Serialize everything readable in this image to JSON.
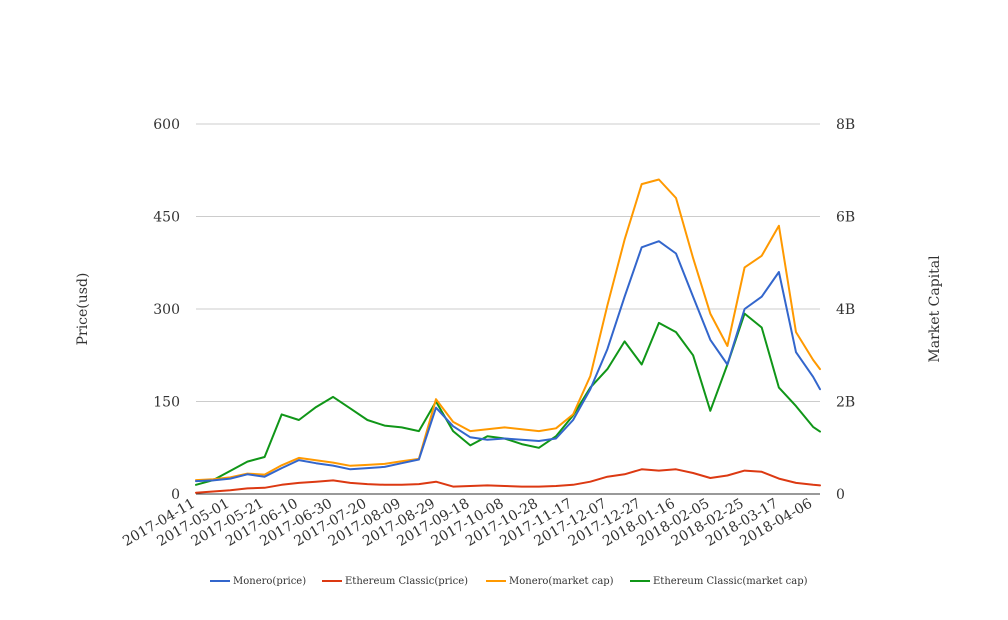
{
  "chart_data": {
    "type": "line",
    "ylabel_left": "Price(usd)",
    "ylabel_right": "Market Capital",
    "ylim_left": [
      0,
      600
    ],
    "ylim_right": [
      0,
      8000000000
    ],
    "yticks_left": [
      "0",
      "150",
      "300",
      "450",
      "600"
    ],
    "yticks_right": [
      "0",
      "2B",
      "4B",
      "6B",
      "8B"
    ],
    "x_tick_labels": [
      "2017-04-11",
      "2017-05-01",
      "2017-05-21",
      "2017-06-10",
      "2017-06-30",
      "2017-07-20",
      "2017-08-09",
      "2017-08-29",
      "2017-09-18",
      "2017-10-08",
      "2017-10-28",
      "2017-11-17",
      "2017-12-07",
      "2017-12-27",
      "2018-01-16",
      "2018-02-05",
      "2018-02-25",
      "2018-03-17",
      "2018-04-06"
    ],
    "grid": true,
    "legend_position": "bottom",
    "x": [
      "2017-04-11",
      "2017-04-21",
      "2017-05-01",
      "2017-05-11",
      "2017-05-21",
      "2017-05-31",
      "2017-06-10",
      "2017-06-20",
      "2017-06-30",
      "2017-07-10",
      "2017-07-20",
      "2017-07-30",
      "2017-08-09",
      "2017-08-19",
      "2017-08-29",
      "2017-09-08",
      "2017-09-18",
      "2017-09-28",
      "2017-10-08",
      "2017-10-18",
      "2017-10-28",
      "2017-11-07",
      "2017-11-17",
      "2017-11-27",
      "2017-12-07",
      "2017-12-17",
      "2017-12-27",
      "2018-01-06",
      "2018-01-16",
      "2018-01-26",
      "2018-02-05",
      "2018-02-15",
      "2018-02-25",
      "2018-03-07",
      "2018-03-17",
      "2018-03-27",
      "2018-04-06",
      "2018-04-10"
    ],
    "series": [
      {
        "name": "Monero(price)",
        "axis": "left",
        "color": "#3366cc",
        "values": [
          21,
          22,
          25,
          32,
          28,
          42,
          55,
          50,
          46,
          40,
          42,
          44,
          50,
          56,
          140,
          110,
          92,
          88,
          90,
          88,
          86,
          90,
          120,
          170,
          235,
          320,
          400,
          410,
          390,
          320,
          250,
          210,
          300,
          320,
          360,
          230,
          190,
          170
        ]
      },
      {
        "name": "Ethereum Classic(price)",
        "axis": "left",
        "color": "#dc3912",
        "values": [
          2,
          4,
          6,
          9,
          10,
          15,
          18,
          20,
          22,
          18,
          16,
          15,
          15,
          16,
          20,
          12,
          13,
          14,
          13,
          12,
          12,
          13,
          15,
          20,
          28,
          32,
          40,
          38,
          40,
          34,
          26,
          30,
          38,
          36,
          25,
          18,
          15,
          14
        ]
      },
      {
        "name": "Monero(market cap)",
        "axis": "right",
        "color": "#ff9900",
        "values": [
          300000000,
          320000000,
          360000000,
          440000000,
          420000000,
          620000000,
          780000000,
          730000000,
          680000000,
          610000000,
          630000000,
          650000000,
          710000000,
          760000000,
          2050000000,
          1560000000,
          1360000000,
          1400000000,
          1440000000,
          1400000000,
          1360000000,
          1420000000,
          1720000000,
          2550000000,
          4080000000,
          5500000000,
          6700000000,
          6800000000,
          6400000000,
          5100000000,
          3900000000,
          3200000000,
          4900000000,
          5150000000,
          5800000000,
          3500000000,
          2900000000,
          2700000000
        ]
      },
      {
        "name": "Ethereum Classic(market cap)",
        "axis": "right",
        "color": "#109618",
        "values": [
          200000000,
          300000000,
          500000000,
          700000000,
          800000000,
          1720000000,
          1600000000,
          1880000000,
          2100000000,
          1850000000,
          1600000000,
          1480000000,
          1440000000,
          1360000000,
          2000000000,
          1360000000,
          1050000000,
          1250000000,
          1200000000,
          1080000000,
          1000000000,
          1250000000,
          1700000000,
          2300000000,
          2700000000,
          3300000000,
          2800000000,
          3700000000,
          3500000000,
          3000000000,
          1800000000,
          2800000000,
          3900000000,
          3600000000,
          2300000000,
          1900000000,
          1450000000,
          1350000000
        ]
      }
    ]
  }
}
